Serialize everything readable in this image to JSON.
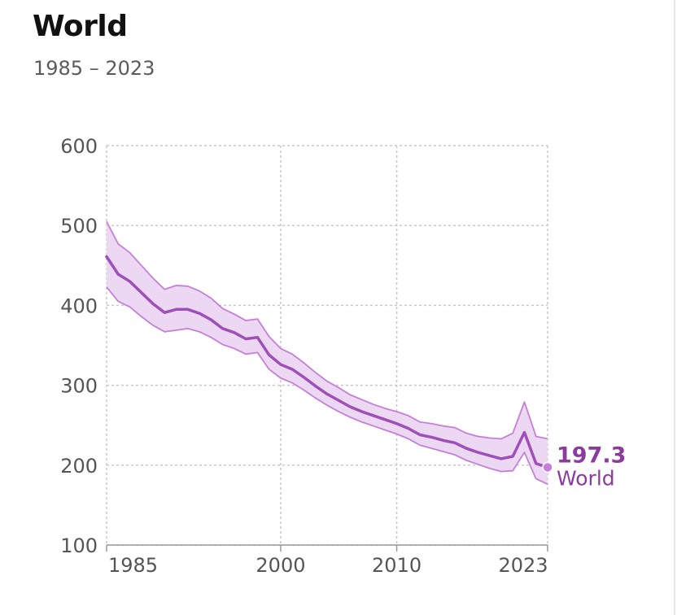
{
  "header": {
    "title": "World",
    "subtitle": "1985 – 2023"
  },
  "colors": {
    "line": "#9e4fb8",
    "band_fill": "#ecd8f2",
    "band_stroke": "#c67fd8",
    "label": "#8c3a9e",
    "grid": "#c8c8c8"
  },
  "chart_data": {
    "type": "line",
    "title": "World",
    "subtitle": "1985 – 2023",
    "xlabel": "",
    "ylabel": "",
    "xlim": [
      1985,
      2023
    ],
    "ylim": [
      100,
      600
    ],
    "x_ticks": [
      1985,
      2000,
      2010,
      2023
    ],
    "y_ticks": [
      100,
      200,
      300,
      400,
      500,
      600
    ],
    "grid": true,
    "x": [
      1985,
      1986,
      1987,
      1988,
      1989,
      1990,
      1991,
      1992,
      1993,
      1994,
      1995,
      1996,
      1997,
      1998,
      1999,
      2000,
      2001,
      2002,
      2003,
      2004,
      2005,
      2006,
      2007,
      2008,
      2009,
      2010,
      2011,
      2012,
      2013,
      2014,
      2015,
      2016,
      2017,
      2018,
      2019,
      2020,
      2021,
      2022,
      2023
    ],
    "series": [
      {
        "name": "World",
        "values": [
          461,
          439,
          430,
          416,
          402,
          391,
          395,
          395,
          390,
          382,
          371,
          366,
          358,
          360,
          338,
          326,
          320,
          310,
          299,
          289,
          281,
          273,
          267,
          262,
          257,
          252,
          246,
          238,
          235,
          231,
          228,
          221,
          216,
          212,
          208,
          211,
          241,
          202,
          197.3
        ],
        "lower": [
          423,
          405,
          398,
          386,
          375,
          367,
          369,
          371,
          367,
          360,
          351,
          346,
          339,
          341,
          320,
          309,
          303,
          294,
          284,
          275,
          267,
          260,
          254,
          249,
          244,
          239,
          233,
          225,
          221,
          217,
          213,
          206,
          201,
          196,
          192,
          193,
          216,
          183,
          176
        ],
        "upper": [
          505,
          477,
          466,
          450,
          434,
          420,
          425,
          424,
          418,
          409,
          396,
          389,
          381,
          383,
          361,
          346,
          339,
          328,
          316,
          305,
          297,
          288,
          282,
          276,
          271,
          267,
          262,
          254,
          252,
          249,
          247,
          240,
          236,
          234,
          233,
          240,
          279,
          236,
          233
        ]
      }
    ],
    "end_label": {
      "value": "197.3",
      "name": "World"
    }
  }
}
